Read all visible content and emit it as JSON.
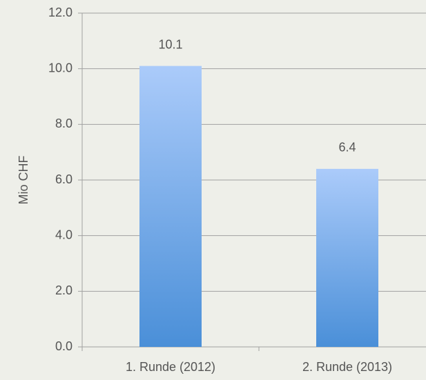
{
  "chart_data": {
    "type": "bar",
    "y_label": "Mio CHF",
    "categories": [
      "1. Runde (2012)",
      "2. Runde (2013)"
    ],
    "values": [
      10.1,
      6.4
    ],
    "color": "#4a8fd8",
    "ylim": [
      0,
      12
    ],
    "yticks": [
      {
        "value": 0,
        "label": "0.0"
      },
      {
        "value": 2,
        "label": "2.0"
      },
      {
        "value": 4,
        "label": "4.0"
      },
      {
        "value": 6,
        "label": "6.0"
      },
      {
        "value": 8,
        "label": "8.0"
      },
      {
        "value": 10,
        "label": "10.0"
      },
      {
        "value": 12,
        "label": "12.0"
      }
    ],
    "grid": true
  }
}
